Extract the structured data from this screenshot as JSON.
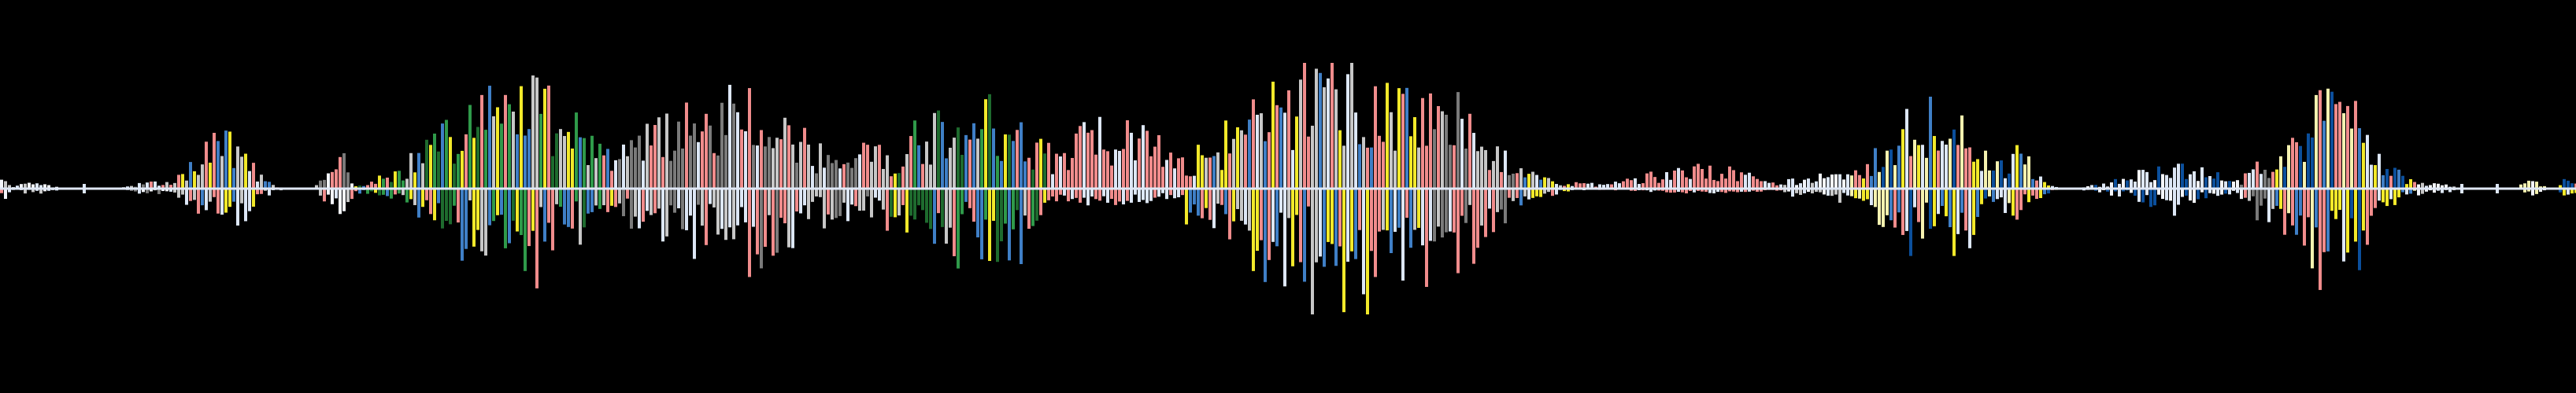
{
  "viz": {
    "background": "#000000",
    "baseline_color": "#dfe7f5",
    "palette": {
      "pink": "#f08c8c",
      "gray": "#c7c7c7",
      "dark_gray": "#7a7a7a",
      "light_blue": "#dde7f6",
      "blue": "#3f7fc6",
      "navy": "#0b4f9c",
      "green": "#2f9a4a",
      "dark_green": "#1e6b2e",
      "yellow": "#f2e92a",
      "pale_yellow": "#f5f2b0",
      "white": "#f4f6fb"
    },
    "bursts": [
      {
        "c": 0.0,
        "w": 0.006,
        "amp": 0.08,
        "tone": "mixed"
      },
      {
        "c": 0.013,
        "w": 0.01,
        "amp": 0.05,
        "tone": "white"
      },
      {
        "c": 0.06,
        "w": 0.016,
        "amp": 0.05,
        "tone": "mixed"
      },
      {
        "c": 0.085,
        "w": 0.016,
        "amp": 0.48,
        "tone": "blue_pink"
      },
      {
        "c": 0.13,
        "w": 0.006,
        "amp": 0.34,
        "tone": "mixed"
      },
      {
        "c": 0.16,
        "w": 0.026,
        "amp": 0.04,
        "tone": "white"
      },
      {
        "c": 0.2,
        "w": 0.045,
        "amp": 0.86,
        "tone": "green_mix"
      },
      {
        "c": 0.238,
        "w": 0.014,
        "amp": 0.15,
        "tone": "navy"
      },
      {
        "c": 0.28,
        "w": 0.055,
        "amp": 0.68,
        "tone": "gray_pink"
      },
      {
        "c": 0.338,
        "w": 0.028,
        "amp": 0.3,
        "tone": "gray_pink"
      },
      {
        "c": 0.376,
        "w": 0.042,
        "amp": 0.66,
        "tone": "green_mix"
      },
      {
        "c": 0.43,
        "w": 0.045,
        "amp": 0.48,
        "tone": "pink_block"
      },
      {
        "c": 0.47,
        "w": 0.02,
        "amp": 0.3,
        "tone": "pink_block"
      },
      {
        "c": 0.52,
        "w": 0.065,
        "amp": 0.94,
        "tone": "blue_pink"
      },
      {
        "c": 0.56,
        "w": 0.03,
        "amp": 0.72,
        "tone": "gray_pink"
      },
      {
        "c": 0.605,
        "w": 0.035,
        "amp": 0.05,
        "tone": "pink_block"
      },
      {
        "c": 0.66,
        "w": 0.04,
        "amp": 0.16,
        "tone": "pink_block"
      },
      {
        "c": 0.71,
        "w": 0.03,
        "amp": 0.1,
        "tone": "white"
      },
      {
        "c": 0.75,
        "w": 0.03,
        "amp": 0.64,
        "tone": "blue_yellow"
      },
      {
        "c": 0.782,
        "w": 0.012,
        "amp": 0.28,
        "tone": "blue_yellow"
      },
      {
        "c": 0.845,
        "w": 0.03,
        "amp": 0.18,
        "tone": "navy_white"
      },
      {
        "c": 0.878,
        "w": 0.01,
        "amp": 0.24,
        "tone": "mixed"
      },
      {
        "c": 0.905,
        "w": 0.024,
        "amp": 0.78,
        "tone": "blue_yellow"
      },
      {
        "c": 0.942,
        "w": 0.012,
        "amp": 0.06,
        "tone": "white"
      },
      {
        "c": 0.982,
        "w": 0.006,
        "amp": 0.06,
        "tone": "pale_yellow"
      },
      {
        "c": 0.997,
        "w": 0.004,
        "amp": 0.1,
        "tone": "blue_yellow"
      }
    ]
  }
}
